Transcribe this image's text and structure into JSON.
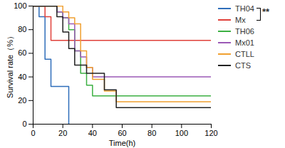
{
  "chart_data": {
    "type": "line",
    "line_style": "step",
    "x_label": "Time(h)",
    "y_label": "Survival rate（%）",
    "x": [
      0,
      4,
      8,
      12,
      16,
      20,
      24,
      28,
      32,
      36,
      40,
      48,
      56,
      120
    ],
    "series": [
      {
        "name": "TH04",
        "color": "#2f6eba",
        "values": [
          100,
          91,
          55,
          32,
          32,
          32,
          0,
          null,
          null,
          null,
          null,
          null,
          null,
          null
        ]
      },
      {
        "name": "Mx",
        "color": "#e0403a",
        "values": [
          100,
          100,
          91,
          71,
          71,
          71,
          71,
          71,
          71,
          71,
          71,
          71,
          71,
          71
        ]
      },
      {
        "name": "TH06",
        "color": "#3cb043",
        "values": [
          100,
          100,
          100,
          100,
          95,
          90,
          80,
          62,
          43,
          33,
          24,
          24,
          24,
          24
        ]
      },
      {
        "name": "Mx01",
        "color": "#9b59b6",
        "values": [
          100,
          100,
          100,
          100,
          95,
          90,
          85,
          62,
          57,
          48,
          40,
          40,
          40,
          40
        ]
      },
      {
        "name": "CTLL",
        "color": "#f0a030",
        "values": [
          100,
          100,
          100,
          100,
          100,
          95,
          90,
          85,
          62,
          48,
          38,
          28,
          19,
          19
        ]
      },
      {
        "name": "CTS",
        "color": "#222222",
        "values": [
          100,
          100,
          100,
          100,
          91,
          78,
          64,
          50,
          50,
          43,
          43,
          29,
          14,
          14
        ]
      }
    ],
    "annotations": [
      "**"
    ],
    "xlim": [
      0,
      120
    ],
    "xticks": [
      0,
      20,
      40,
      60,
      80,
      100,
      120
    ],
    "ylim": [
      0,
      100
    ],
    "yticks": [
      0,
      20,
      40,
      60,
      80,
      100
    ],
    "grid": false,
    "legend": "right"
  }
}
